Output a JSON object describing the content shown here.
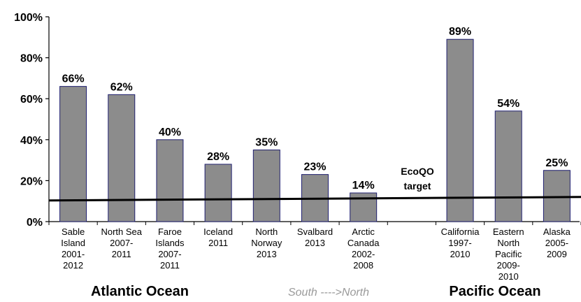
{
  "chart_data": {
    "type": "bar",
    "categories": [
      [
        "Sable",
        "Island",
        "2001-",
        "2012"
      ],
      [
        "North Sea",
        "2007-",
        "2011"
      ],
      [
        "Faroe",
        "Islands",
        "2007-",
        "2011"
      ],
      [
        "Iceland",
        "2011"
      ],
      [
        "North",
        "Norway",
        "2013"
      ],
      [
        "Svalbard",
        "2013"
      ],
      [
        "Arctic",
        "Canada",
        "2002-",
        "2008"
      ],
      [],
      [
        "California",
        "1997-",
        "2010"
      ],
      [
        "Eastern",
        "North",
        "Pacific",
        "2009-",
        "2010"
      ],
      [
        "Alaska",
        "2005-",
        "2009"
      ]
    ],
    "values": [
      66,
      62,
      40,
      28,
      35,
      23,
      14,
      null,
      89,
      54,
      25
    ],
    "data_labels": [
      "66%",
      "62%",
      "40%",
      "28%",
      "35%",
      "23%",
      "14%",
      "",
      "89%",
      "54%",
      "25%"
    ],
    "ylim": [
      0,
      100
    ],
    "yticks": [
      "0%",
      "20%",
      "40%",
      "60%",
      "80%",
      "100%"
    ],
    "target_line": {
      "value": 11,
      "label": [
        "EcoQO",
        "target"
      ]
    },
    "groups": [
      "Atlantic Ocean",
      "Pacific Ocean"
    ],
    "direction_note": "South ---->North",
    "bar_color": "#8c8c8c",
    "bar_edge_color": "#1f1f6f",
    "xlabel": "",
    "ylabel": ""
  }
}
